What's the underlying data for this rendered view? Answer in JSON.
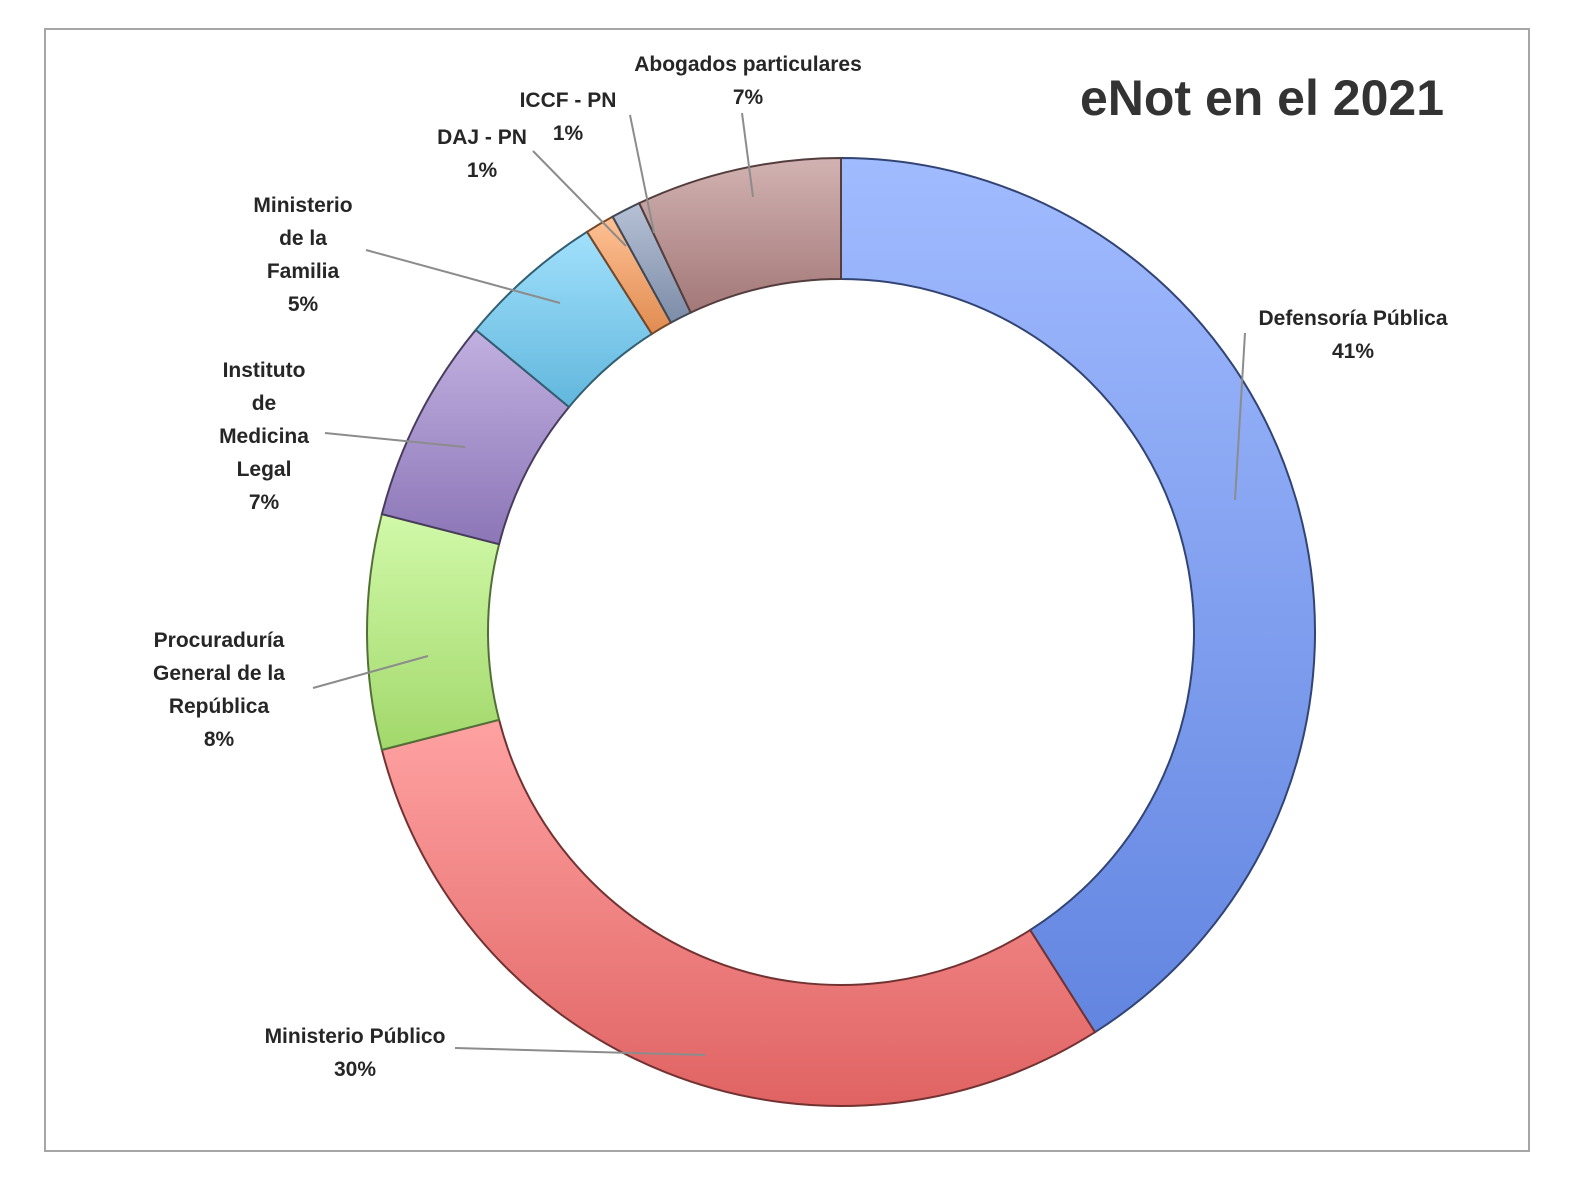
{
  "chart_data": {
    "type": "pie",
    "title": "eNot en el 2021",
    "donut": true,
    "slices": [
      {
        "label_lines": [
          "Defensoría Pública"
        ],
        "percent_label": "41%",
        "value": 41,
        "color": "#6f97ff"
      },
      {
        "label_lines": [
          "Ministerio Público"
        ],
        "percent_label": "30%",
        "value": 30,
        "color": "#ff7070"
      },
      {
        "label_lines": [
          "Procuraduría",
          "General de la",
          "República"
        ],
        "percent_label": "8%",
        "value": 8,
        "color": "#b8f57a"
      },
      {
        "label_lines": [
          "Instituto",
          "de",
          "Medicina",
          "Legal"
        ],
        "percent_label": "7%",
        "value": 7,
        "color": "#9f86d0"
      },
      {
        "label_lines": [
          "Ministerio",
          "de la",
          "Familia"
        ],
        "percent_label": "5%",
        "value": 5,
        "color": "#6fd0fb"
      },
      {
        "label_lines": [
          "DAJ - PN"
        ],
        "percent_label": "1%",
        "value": 1,
        "color": "#ff9f5c"
      },
      {
        "label_lines": [
          "ICCF - PN"
        ],
        "percent_label": "1%",
        "value": 1,
        "color": "#8e9fbf"
      },
      {
        "label_lines": [
          "Abogados particulares"
        ],
        "percent_label": "7%",
        "value": 7,
        "color": "#b98888"
      }
    ],
    "legend": "none"
  }
}
